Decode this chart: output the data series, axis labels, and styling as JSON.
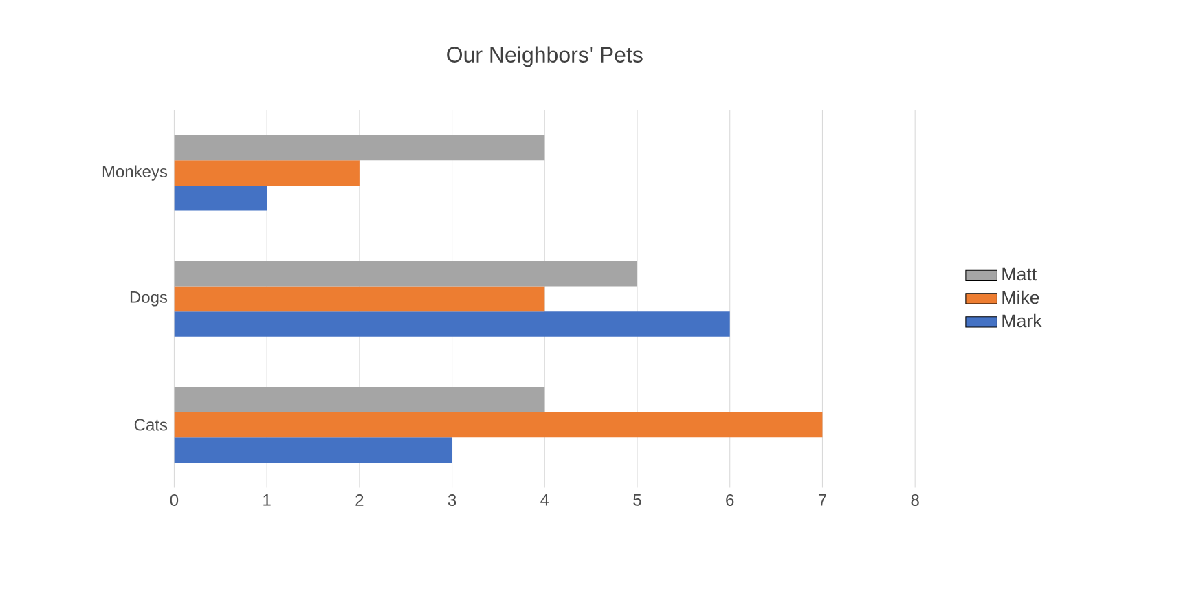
{
  "chart_data": {
    "type": "bar",
    "orientation": "horizontal",
    "title": "Our Neighbors' Pets",
    "categories": [
      "Monkeys",
      "Dogs",
      "Cats"
    ],
    "series": [
      {
        "name": "Mark",
        "color": "#4472c4",
        "values": [
          1,
          6,
          3
        ]
      },
      {
        "name": "Mike",
        "color": "#ed7d31",
        "values": [
          2,
          4,
          7
        ]
      },
      {
        "name": "Matt",
        "color": "#a5a5a5",
        "values": [
          4,
          5,
          4
        ]
      }
    ],
    "xlim": [
      0,
      8
    ],
    "xticks": [
      0,
      1,
      2,
      3,
      4,
      5,
      6,
      7,
      8
    ],
    "grid": "x",
    "legend": "right"
  }
}
